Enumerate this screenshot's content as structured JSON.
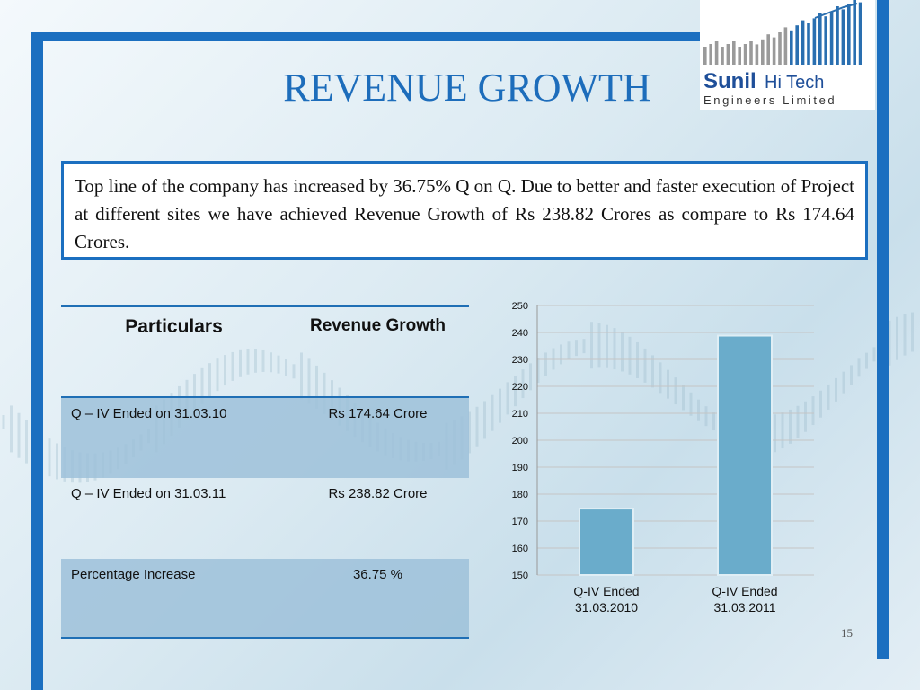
{
  "title": "REVENUE GROWTH",
  "logo": {
    "line1_bold": "Sunil",
    "line1_rest": "Hi Tech",
    "line2": "Engineers Limited"
  },
  "summary": "Top line of the company has increased by 36.75% Q on Q. Due to better and faster execution of Project at different sites we have achieved Revenue Growth of Rs 238.82 Crores as compare to Rs 174.64 Crores.",
  "table": {
    "headers": [
      "Particulars",
      "Revenue Growth"
    ],
    "rows": [
      [
        "Q – IV Ended  on  31.03.10",
        "Rs 174.64 Crore"
      ],
      [
        "Q – IV Ended on 31.03.11",
        "Rs 238.82 Crore"
      ],
      [
        "Percentage Increase",
        "36.75 %"
      ]
    ]
  },
  "chart_data": {
    "type": "bar",
    "categories": [
      [
        "Q-IV Ended",
        "31.03.2010"
      ],
      [
        "Q-IV Ended",
        "31.03.2011"
      ]
    ],
    "values": [
      174.64,
      238.82
    ],
    "ylim": [
      150,
      250
    ],
    "yticks": [
      150,
      160,
      170,
      180,
      190,
      200,
      210,
      220,
      230,
      240,
      250
    ],
    "grid": true,
    "bar_color": "#6aaccb"
  },
  "page_number": "15",
  "colors": {
    "accent": "#1b6fc0",
    "title": "#1d6dbb"
  }
}
